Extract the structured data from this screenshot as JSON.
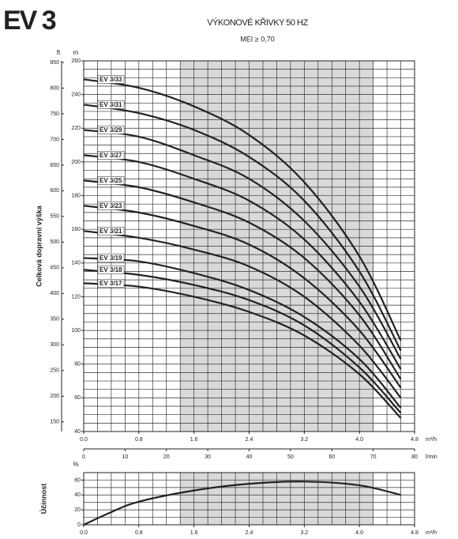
{
  "header": {
    "title": "EV 3"
  },
  "chart_data": [
    {
      "type": "line",
      "title": "VÝKONOVÉ KŘIVKY 50 HZ",
      "subtitle": "MEI ≥ 0,70",
      "ylabel": "Celková dopravní výška",
      "yunit": "m",
      "y2unit": "ft",
      "xlabel": "m³/h",
      "x2label": "l/min",
      "x": [
        0,
        0.8,
        1.6,
        2.4,
        3.2,
        4.0,
        4.6
      ],
      "series": [
        {
          "name": "EV 3/33",
          "color": "#222222",
          "values": [
            249,
            244,
            233,
            216,
            188,
            144,
            94
          ]
        },
        {
          "name": "EV 3/31",
          "color": "#222222",
          "values": [
            234,
            229,
            219,
            203,
            177,
            135,
            88
          ]
        },
        {
          "name": "EV 3/29",
          "color": "#222222",
          "values": [
            219,
            215,
            204,
            190,
            165,
            126,
            83
          ]
        },
        {
          "name": "EV 3/27",
          "color": "#222222",
          "values": [
            204,
            200,
            190,
            177,
            154,
            117,
            77
          ]
        },
        {
          "name": "EV 3/25",
          "color": "#222222",
          "values": [
            189,
            185,
            176,
            164,
            143,
            109,
            71
          ]
        },
        {
          "name": "EV 3/23",
          "color": "#222222",
          "values": [
            174,
            170,
            162,
            151,
            131,
            100,
            66
          ]
        },
        {
          "name": "EV 3/21",
          "color": "#222222",
          "values": [
            159,
            155,
            148,
            138,
            120,
            91,
            60
          ]
        },
        {
          "name": "EV 3/19",
          "color": "#222222",
          "values": [
            143,
            141,
            134,
            124,
            108,
            83,
            54
          ]
        },
        {
          "name": "EV 3/18",
          "color": "#222222",
          "values": [
            136,
            133,
            127,
            118,
            103,
            78,
            51
          ]
        },
        {
          "name": "EV 3/17",
          "color": "#222222",
          "values": [
            128,
            126,
            120,
            111,
            97,
            74,
            48
          ]
        }
      ],
      "xlim": [
        0,
        4.8
      ],
      "xticks": [
        {
          "value": 0,
          "label": "0.0"
        },
        0.8,
        1.6,
        2.4,
        3.2,
        {
          "value": 4,
          "label": "4.0"
        },
        4.8
      ],
      "ylim": [
        40,
        260
      ],
      "yticks": [
        40,
        60,
        80,
        100,
        120,
        140,
        160,
        180,
        200,
        220,
        240,
        260
      ],
      "y2lim": [
        131.23,
        853.02
      ],
      "y2ticks": [
        150,
        200,
        250,
        300,
        350,
        400,
        450,
        500,
        550,
        600,
        650,
        700,
        750,
        800,
        850
      ],
      "x2lim": [
        0,
        80
      ],
      "x2ticks": [
        0,
        10,
        20,
        30,
        40,
        50,
        60,
        70,
        80
      ],
      "shaded_range": [
        1.4,
        4.2
      ],
      "grid": true,
      "xminor": 0.2,
      "yminor": 5
    },
    {
      "type": "line",
      "ylabel": "Účinnost",
      "yunit": "%",
      "xlabel": "m³/h",
      "x": [
        0,
        0.4,
        0.8,
        1.6,
        2.4,
        3.2,
        4.0,
        4.6
      ],
      "series": [
        {
          "color": "#222222",
          "values": [
            0,
            17,
            31,
            46,
            55,
            58,
            53,
            40
          ]
        }
      ],
      "xlim": [
        0,
        4.8
      ],
      "xticks": [
        {
          "value": 0,
          "label": "0.0"
        },
        0.8,
        1.6,
        2.4,
        3.2,
        {
          "value": 4,
          "label": "4.0"
        },
        4.8
      ],
      "ylim": [
        0,
        70
      ],
      "yticks": [
        0,
        20,
        40,
        60
      ],
      "shaded_range": [
        1.4,
        4.2
      ],
      "grid": true,
      "xminor": 0.2,
      "yminor": 10
    }
  ]
}
